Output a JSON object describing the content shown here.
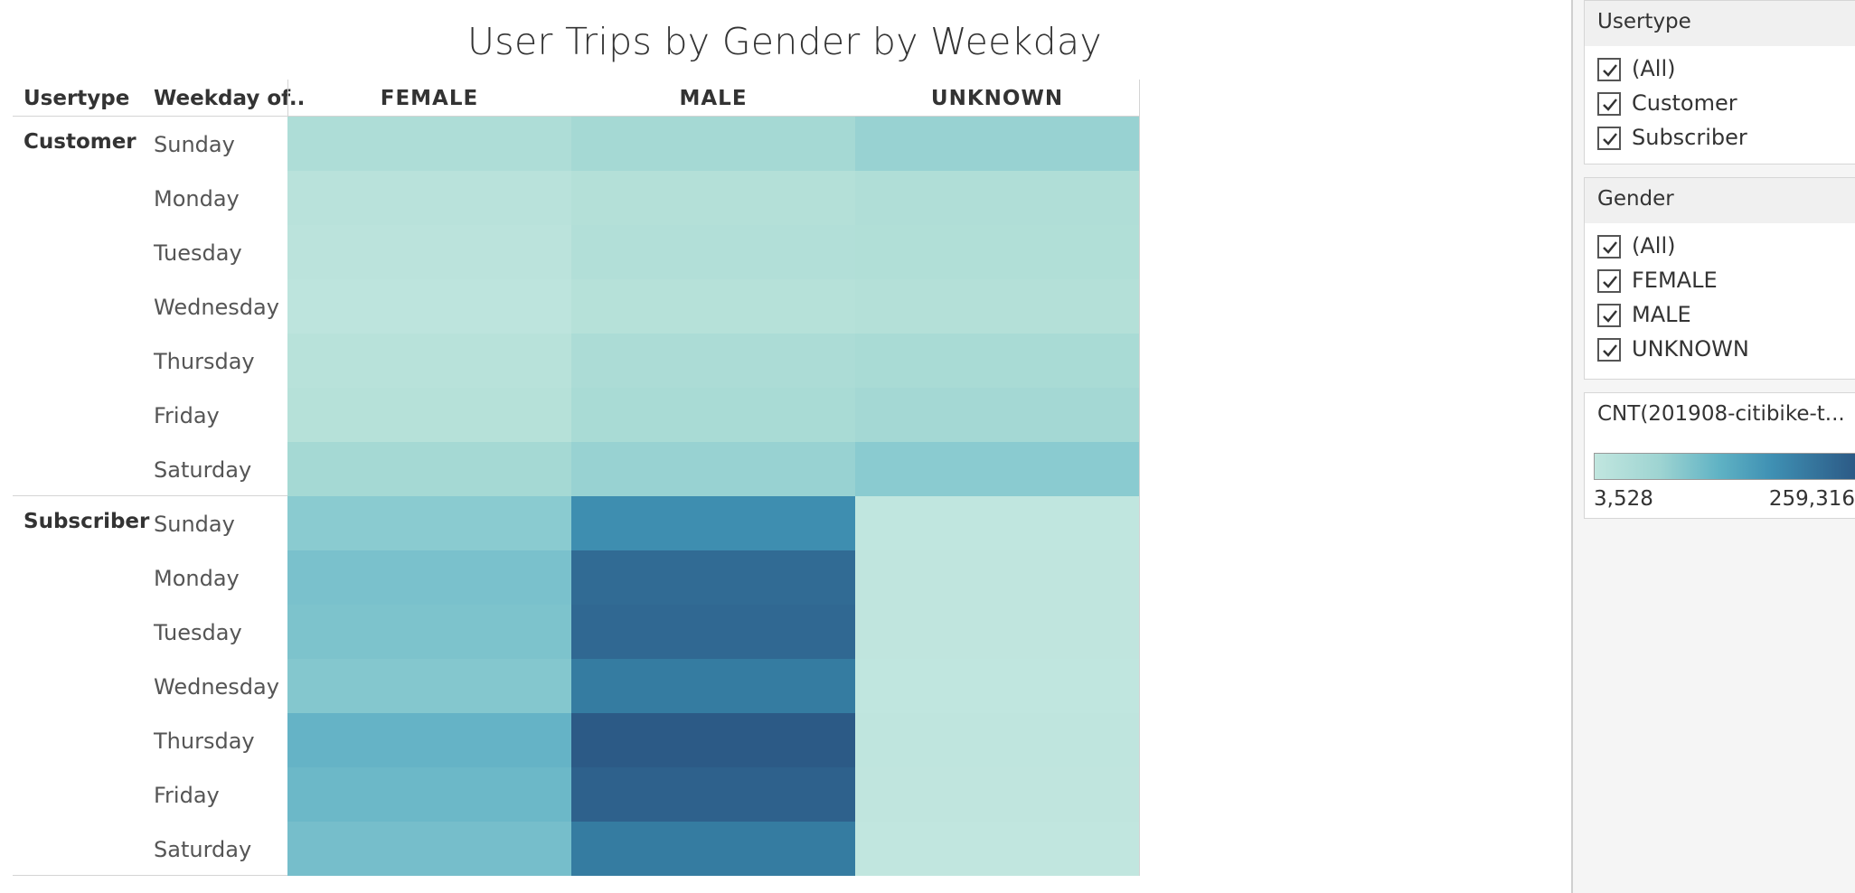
{
  "title": "User Trips by Gender by Weekday",
  "header": {
    "usertype": "Usertype",
    "weekday": "Weekday of..",
    "genders": [
      "FEMALE",
      "MALE",
      "UNKNOWN"
    ]
  },
  "groups": [
    {
      "name": "Customer",
      "weekdays": [
        "Sunday",
        "Monday",
        "Tuesday",
        "Wednesday",
        "Thursday",
        "Friday",
        "Saturday"
      ]
    },
    {
      "name": "Subscriber",
      "weekdays": [
        "Sunday",
        "Monday",
        "Tuesday",
        "Wednesday",
        "Thursday",
        "Friday",
        "Saturday"
      ]
    }
  ],
  "chart_data": {
    "type": "heatmap",
    "title": "User Trips by Gender by Weekday",
    "x": [
      "FEMALE",
      "MALE",
      "UNKNOWN"
    ],
    "y_groups": [
      "Customer",
      "Subscriber"
    ],
    "y": [
      "Sunday",
      "Monday",
      "Tuesday",
      "Wednesday",
      "Thursday",
      "Friday",
      "Saturday"
    ],
    "color_field": "CNT(201908-citibike-t...",
    "color_range": [
      3528,
      259316
    ],
    "colors": {
      "low": "#c1e6df",
      "high": "#2c5a86"
    },
    "values": {
      "Customer": [
        [
          18000,
          25000,
          38000
        ],
        [
          10000,
          14000,
          17000
        ],
        [
          8000,
          15000,
          16000
        ],
        [
          7000,
          12000,
          14000
        ],
        [
          11000,
          20000,
          22000
        ],
        [
          12000,
          22000,
          26000
        ],
        [
          25000,
          38000,
          55000
        ]
      ],
      "Subscriber": [
        [
          55000,
          145000,
          4000
        ],
        [
          68000,
          215000,
          4500
        ],
        [
          66000,
          220000,
          4500
        ],
        [
          60000,
          180000,
          4200
        ],
        [
          90000,
          259316,
          5000
        ],
        [
          80000,
          240000,
          4700
        ],
        [
          72000,
          180000,
          3528
        ]
      ]
    }
  },
  "filters": {
    "usertype": {
      "title": "Usertype",
      "options": [
        {
          "label": "(All)",
          "checked": true
        },
        {
          "label": "Customer",
          "checked": true
        },
        {
          "label": "Subscriber",
          "checked": true
        }
      ]
    },
    "gender": {
      "title": "Gender",
      "options": [
        {
          "label": "(All)",
          "checked": true
        },
        {
          "label": "FEMALE",
          "checked": true
        },
        {
          "label": "MALE",
          "checked": true
        },
        {
          "label": "UNKNOWN",
          "checked": true
        }
      ]
    }
  },
  "legend": {
    "title": "CNT(201908-citibike-t...",
    "min_label": "3,528",
    "max_label": "259,316"
  }
}
